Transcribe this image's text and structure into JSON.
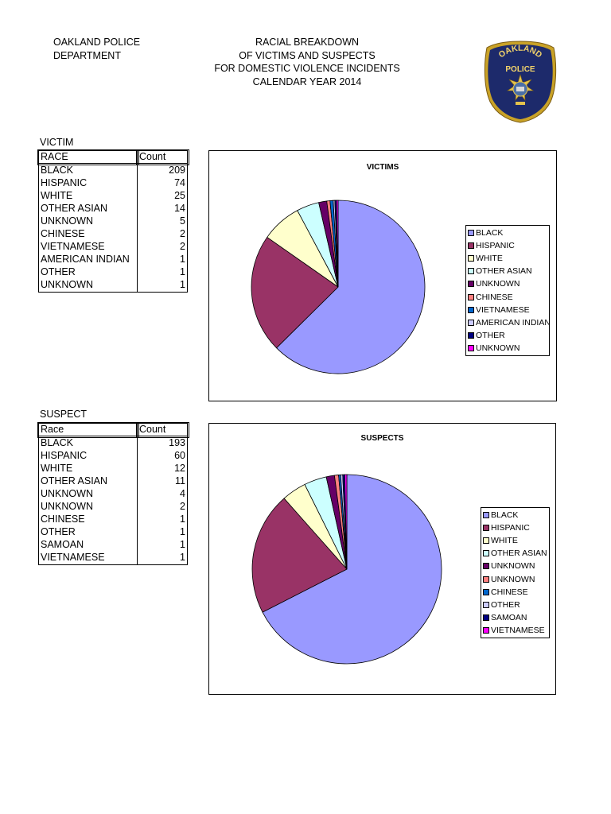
{
  "header": {
    "department_line1": "OAKLAND POLICE",
    "department_line2": "DEPARTMENT",
    "title_lines": [
      "RACIAL BREAKDOWN",
      "OF VICTIMS AND SUSPECTS",
      "FOR DOMESTIC VIOLENCE INCIDENTS",
      "CALENDAR YEAR 2014"
    ],
    "badge_text_top": "OAKLAND",
    "badge_text_bottom": "POLICE"
  },
  "victim_table": {
    "section_label": "VICTIM",
    "col_race": "RACE",
    "col_count": "Count",
    "rows": [
      {
        "race": "BLACK",
        "count": "209"
      },
      {
        "race": "HISPANIC",
        "count": "74"
      },
      {
        "race": "WHITE",
        "count": "25"
      },
      {
        "race": "OTHER ASIAN",
        "count": "14"
      },
      {
        "race": "UNKNOWN",
        "count": "5"
      },
      {
        "race": "CHINESE",
        "count": "2"
      },
      {
        "race": "VIETNAMESE",
        "count": "2"
      },
      {
        "race": "AMERICAN INDIAN",
        "count": "1"
      },
      {
        "race": "OTHER",
        "count": "1"
      },
      {
        "race": "UNKNOWN",
        "count": "1"
      }
    ]
  },
  "suspect_table": {
    "section_label": "SUSPECT",
    "col_race": "Race",
    "col_count": "Count",
    "rows": [
      {
        "race": "BLACK",
        "count": "193"
      },
      {
        "race": "HISPANIC",
        "count": "60"
      },
      {
        "race": "WHITE",
        "count": "12"
      },
      {
        "race": "OTHER ASIAN",
        "count": "11"
      },
      {
        "race": "UNKNOWN",
        "count": "4"
      },
      {
        "race": "UNKNOWN",
        "count": "2"
      },
      {
        "race": "CHINESE",
        "count": "1"
      },
      {
        "race": "OTHER",
        "count": "1"
      },
      {
        "race": "SAMOAN",
        "count": "1"
      },
      {
        "race": "VIETNAMESE",
        "count": "1"
      }
    ]
  },
  "chart_data": [
    {
      "type": "pie",
      "title": "VICTIMS",
      "categories": [
        "BLACK",
        "HISPANIC",
        "WHITE",
        "OTHER ASIAN",
        "UNKNOWN",
        "CHINESE",
        "VIETNAMESE",
        "AMERICAN INDIAN",
        "OTHER",
        "UNKNOWN"
      ],
      "values": [
        209,
        74,
        25,
        14,
        5,
        2,
        2,
        1,
        1,
        1
      ],
      "colors": [
        "#9999ff",
        "#993366",
        "#ffffcc",
        "#ccffff",
        "#660066",
        "#ff8080",
        "#0066cc",
        "#ccccff",
        "#000080",
        "#ff00ff"
      ],
      "legend_position": "right"
    },
    {
      "type": "pie",
      "title": "SUSPECTS",
      "categories": [
        "BLACK",
        "HISPANIC",
        "WHITE",
        "OTHER ASIAN",
        "UNKNOWN",
        "UNKNOWN",
        "CHINESE",
        "OTHER",
        "SAMOAN",
        "VIETNAMESE"
      ],
      "values": [
        193,
        60,
        12,
        11,
        4,
        2,
        1,
        1,
        1,
        1
      ],
      "colors": [
        "#9999ff",
        "#993366",
        "#ffffcc",
        "#ccffff",
        "#660066",
        "#ff8080",
        "#0066cc",
        "#ccccff",
        "#000080",
        "#ff00ff"
      ],
      "legend_position": "right"
    }
  ]
}
